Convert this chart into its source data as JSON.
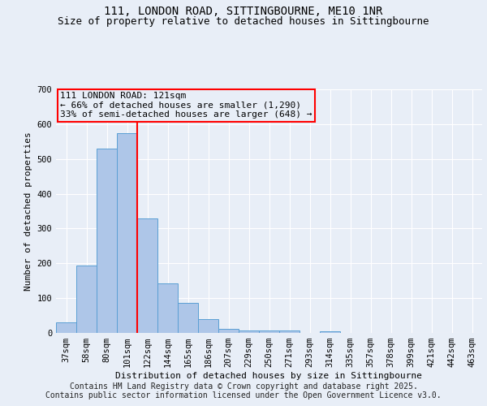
{
  "title1": "111, LONDON ROAD, SITTINGBOURNE, ME10 1NR",
  "title2": "Size of property relative to detached houses in Sittingbourne",
  "xlabel": "Distribution of detached houses by size in Sittingbourne",
  "ylabel": "Number of detached properties",
  "categories": [
    "37sqm",
    "58sqm",
    "80sqm",
    "101sqm",
    "122sqm",
    "144sqm",
    "165sqm",
    "186sqm",
    "207sqm",
    "229sqm",
    "250sqm",
    "271sqm",
    "293sqm",
    "314sqm",
    "335sqm",
    "357sqm",
    "378sqm",
    "399sqm",
    "421sqm",
    "442sqm",
    "463sqm"
  ],
  "values": [
    30,
    193,
    530,
    575,
    330,
    143,
    87,
    40,
    12,
    8,
    8,
    8,
    0,
    5,
    0,
    0,
    0,
    0,
    0,
    0,
    0
  ],
  "bar_color": "#aec6e8",
  "bar_edge_color": "#5a9fd4",
  "vline_color": "red",
  "vline_index": 3.5,
  "annotation_title": "111 LONDON ROAD: 121sqm",
  "annotation_line2": "← 66% of detached houses are smaller (1,290)",
  "annotation_line3": "33% of semi-detached houses are larger (648) →",
  "annotation_box_color": "red",
  "ylim": [
    0,
    700
  ],
  "yticks": [
    0,
    100,
    200,
    300,
    400,
    500,
    600,
    700
  ],
  "background_color": "#e8eef7",
  "footer1": "Contains HM Land Registry data © Crown copyright and database right 2025.",
  "footer2": "Contains public sector information licensed under the Open Government Licence v3.0.",
  "title_fontsize": 10,
  "subtitle_fontsize": 9,
  "axis_label_fontsize": 8,
  "tick_fontsize": 7.5,
  "annotation_fontsize": 8,
  "footer_fontsize": 7
}
